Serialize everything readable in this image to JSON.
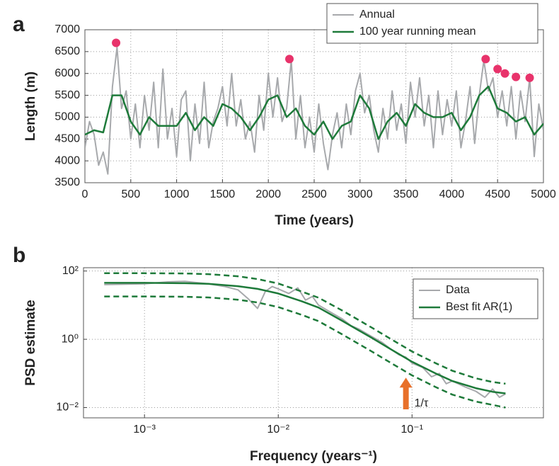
{
  "chart_data": [
    {
      "type": "line",
      "panel_label": "a",
      "xlabel": "Time (years)",
      "ylabel": "Length (m)",
      "xlim": [
        0,
        5000
      ],
      "xticks": [
        0,
        500,
        1000,
        1500,
        2000,
        2500,
        3000,
        3500,
        4000,
        4500,
        5000
      ],
      "ylim": [
        3500,
        7000
      ],
      "yticks": [
        3500,
        4000,
        4500,
        5000,
        5500,
        6000,
        6500,
        7000
      ],
      "grid": true,
      "legend": "upper right",
      "series": [
        {
          "name": "Annual",
          "color": "#a7a9ac",
          "width": 2,
          "x": [
            0,
            50,
            100,
            150,
            200,
            250,
            300,
            350,
            400,
            450,
            500,
            550,
            600,
            650,
            700,
            750,
            800,
            850,
            900,
            950,
            1000,
            1050,
            1100,
            1150,
            1200,
            1250,
            1300,
            1350,
            1400,
            1450,
            1500,
            1550,
            1600,
            1650,
            1700,
            1750,
            1800,
            1850,
            1900,
            1950,
            2000,
            2050,
            2100,
            2150,
            2200,
            2250,
            2300,
            2350,
            2400,
            2450,
            2500,
            2550,
            2600,
            2650,
            2700,
            2750,
            2800,
            2850,
            2900,
            2950,
            3000,
            3050,
            3100,
            3150,
            3200,
            3250,
            3300,
            3350,
            3400,
            3450,
            3500,
            3550,
            3600,
            3650,
            3700,
            3750,
            3800,
            3850,
            3900,
            3950,
            4000,
            4050,
            4100,
            4150,
            4200,
            4250,
            4300,
            4350,
            4400,
            4450,
            4500,
            4550,
            4600,
            4650,
            4700,
            4750,
            4800,
            4850,
            4900,
            4950,
            5000
          ],
          "values": [
            4300,
            4900,
            4600,
            3900,
            4200,
            3700,
            5700,
            6600,
            5200,
            5600,
            4500,
            5300,
            4300,
            5500,
            4700,
            5800,
            4300,
            6100,
            4500,
            5200,
            4100,
            5400,
            5600,
            4000,
            5300,
            4400,
            5800,
            4300,
            4900,
            5200,
            5700,
            4800,
            6000,
            4800,
            5400,
            4500,
            4900,
            4200,
            5500,
            4700,
            6000,
            5000,
            5900,
            4900,
            5200,
            6300,
            4500,
            5500,
            4300,
            5000,
            4200,
            5300,
            4400,
            3800,
            4600,
            5100,
            4300,
            5300,
            4600,
            5600,
            6000,
            5100,
            5500,
            4700,
            4200,
            5200,
            4500,
            5600,
            4700,
            5300,
            4400,
            5800,
            5000,
            5900,
            4800,
            5500,
            4300,
            5600,
            4600,
            5400,
            4800,
            5600,
            4300,
            4900,
            5700,
            4400,
            5500,
            6300,
            5600,
            5900,
            5000,
            5600,
            4800,
            5700,
            4500,
            5600,
            4900,
            5900,
            4100,
            5300,
            4700
          ]
        },
        {
          "name": "100 year running mean",
          "color": "#1e7a3a",
          "width": 2.5,
          "x": [
            0,
            100,
            200,
            300,
            400,
            500,
            600,
            700,
            800,
            900,
            1000,
            1100,
            1200,
            1300,
            1400,
            1500,
            1600,
            1700,
            1800,
            1900,
            2000,
            2100,
            2200,
            2300,
            2400,
            2500,
            2600,
            2700,
            2800,
            2900,
            3000,
            3100,
            3200,
            3300,
            3400,
            3500,
            3600,
            3700,
            3800,
            3900,
            4000,
            4100,
            4200,
            4300,
            4400,
            4500,
            4600,
            4700,
            4800,
            4900,
            5000
          ],
          "values": [
            4600,
            4700,
            4650,
            5500,
            5500,
            4900,
            4600,
            5000,
            4800,
            4800,
            4800,
            5100,
            4700,
            5000,
            4800,
            5300,
            5200,
            5000,
            4700,
            5000,
            5400,
            5500,
            5000,
            5200,
            4800,
            4600,
            4900,
            4500,
            4800,
            4900,
            5500,
            5200,
            4500,
            4900,
            5100,
            4800,
            5300,
            5100,
            5000,
            5000,
            5100,
            4700,
            5000,
            5500,
            5700,
            5200,
            5100,
            4900,
            5000,
            4600,
            4850
          ]
        }
      ],
      "highlights": {
        "color": "#e8336b",
        "x": [
          340,
          2230,
          4370,
          4500,
          4580,
          4700,
          4850
        ],
        "values": [
          6700,
          6330,
          6330,
          6100,
          6000,
          5920,
          5900
        ]
      }
    },
    {
      "type": "line",
      "panel_label": "b",
      "xlabel": "Frequency (years⁻¹)",
      "ylabel": "PSD estimate",
      "xscale": "log",
      "yscale": "log",
      "xlim": [
        0.00035,
        0.96
      ],
      "xticks": [
        {
          "value": 0.001,
          "label": "10⁻³"
        },
        {
          "value": 0.01,
          "label": "10⁻²"
        },
        {
          "value": 0.1,
          "label": "10⁻¹"
        }
      ],
      "ylim": [
        0.005,
        125
      ],
      "yticks": [
        {
          "value": 0.01,
          "label": "10⁻²"
        },
        {
          "value": 1,
          "label": "10⁰"
        },
        {
          "value": 100,
          "label": "10²"
        }
      ],
      "grid": true,
      "legend": "right",
      "series": [
        {
          "name": "Data",
          "color": "#a7a9ac",
          "width": 2,
          "x": [
            0.0005,
            0.001,
            0.0015,
            0.002,
            0.003,
            0.004,
            0.005,
            0.006,
            0.007,
            0.008,
            0.009,
            0.01,
            0.012,
            0.014,
            0.016,
            0.018,
            0.02,
            0.025,
            0.03,
            0.035,
            0.04,
            0.05,
            0.06,
            0.07,
            0.08,
            0.09,
            0.1,
            0.12,
            0.14,
            0.16,
            0.18,
            0.2,
            0.25,
            0.3,
            0.35,
            0.4,
            0.45,
            0.5
          ],
          "values": [
            40,
            42,
            48,
            50,
            42,
            35,
            28,
            15,
            8,
            25,
            35,
            30,
            22,
            32,
            14,
            18,
            10,
            6,
            4,
            2.5,
            2,
            1.2,
            0.8,
            0.5,
            0.35,
            0.3,
            0.2,
            0.15,
            0.08,
            0.1,
            0.05,
            0.06,
            0.04,
            0.03,
            0.02,
            0.035,
            0.02,
            0.025
          ]
        },
        {
          "name": "Best fit AR(1)",
          "color": "#1e7a3a",
          "width": 2.5,
          "x": [
            0.0005,
            0.001,
            0.002,
            0.003,
            0.005,
            0.007,
            0.01,
            0.015,
            0.02,
            0.03,
            0.05,
            0.07,
            0.1,
            0.15,
            0.2,
            0.3,
            0.4,
            0.5
          ],
          "values": [
            45,
            45,
            44,
            42,
            36,
            30,
            22,
            13,
            8.5,
            3.5,
            1.1,
            0.5,
            0.22,
            0.1,
            0.06,
            0.037,
            0.029,
            0.026
          ]
        }
      ],
      "confidence_band": {
        "color": "#1e7a3a",
        "of_series": 1,
        "upper": [
          86,
          86,
          85,
          81,
          70,
          58,
          43,
          25,
          16.5,
          7,
          2.2,
          1,
          0.44,
          0.2,
          0.12,
          0.072,
          0.056,
          0.05
        ],
        "lower": [
          18,
          18,
          17.6,
          16.8,
          14.4,
          12,
          8.8,
          5.2,
          3.4,
          1.4,
          0.44,
          0.2,
          0.088,
          0.04,
          0.024,
          0.015,
          0.012,
          0.01
        ]
      },
      "annotation": {
        "text": "1/τ",
        "x": 0.09,
        "y": 0.075,
        "color": "#e8702a"
      }
    }
  ]
}
